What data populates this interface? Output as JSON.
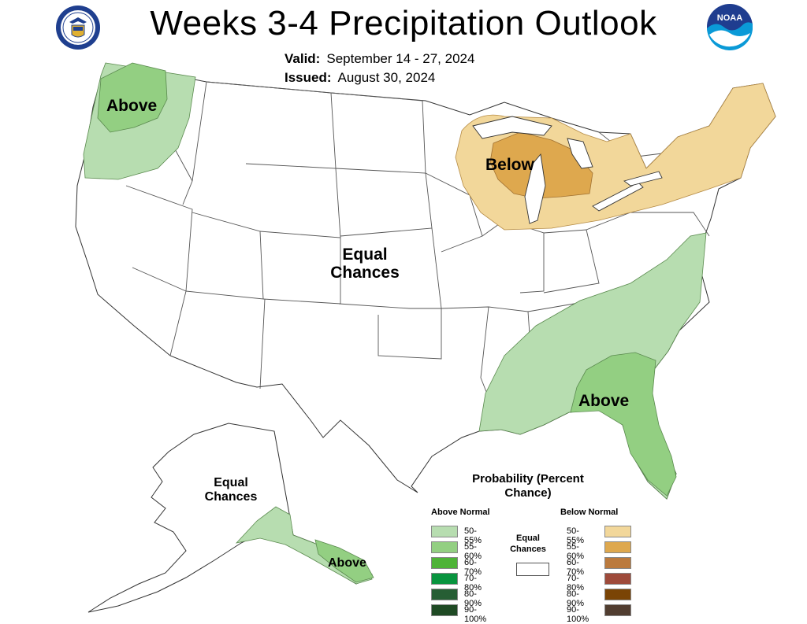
{
  "header": {
    "title": "Weeks 3-4 Precipitation Outlook",
    "valid_label": "Valid:",
    "valid_value": "September 14 - 27, 2024",
    "issued_label": "Issued:",
    "issued_value": "August 30, 2024"
  },
  "logos": {
    "left": "commerce-seal-icon",
    "right": "noaa-icon",
    "noaa_text": "NOAA"
  },
  "regions": {
    "northwest": "Above",
    "great_lakes": "Below",
    "central": "Equal Chances",
    "southeast": "Above",
    "alaska_interior": "Equal Chances",
    "alaska_southeast": "Above"
  },
  "legend": {
    "title": "Probability (Percent Chance)",
    "above_header": "Above Normal",
    "below_header": "Below Normal",
    "equal_label": "Equal Chances",
    "above": [
      {
        "label": "50-55%",
        "color": "#b7ddb0"
      },
      {
        "label": "55-60%",
        "color": "#93cf82"
      },
      {
        "label": "60-70%",
        "color": "#4eb337"
      },
      {
        "label": "70-80%",
        "color": "#08943e"
      },
      {
        "label": "80-90%",
        "color": "#265e34"
      },
      {
        "label": "90-100%",
        "color": "#1f4a24"
      }
    ],
    "below": [
      {
        "label": "50-55%",
        "color": "#f2d79a"
      },
      {
        "label": "55-60%",
        "color": "#dea84e"
      },
      {
        "label": "60-70%",
        "color": "#bb7a3d"
      },
      {
        "label": "70-80%",
        "color": "#9e4a3a"
      },
      {
        "label": "80-90%",
        "color": "#7a4405"
      },
      {
        "label": "90-100%",
        "color": "#513d30"
      }
    ]
  }
}
